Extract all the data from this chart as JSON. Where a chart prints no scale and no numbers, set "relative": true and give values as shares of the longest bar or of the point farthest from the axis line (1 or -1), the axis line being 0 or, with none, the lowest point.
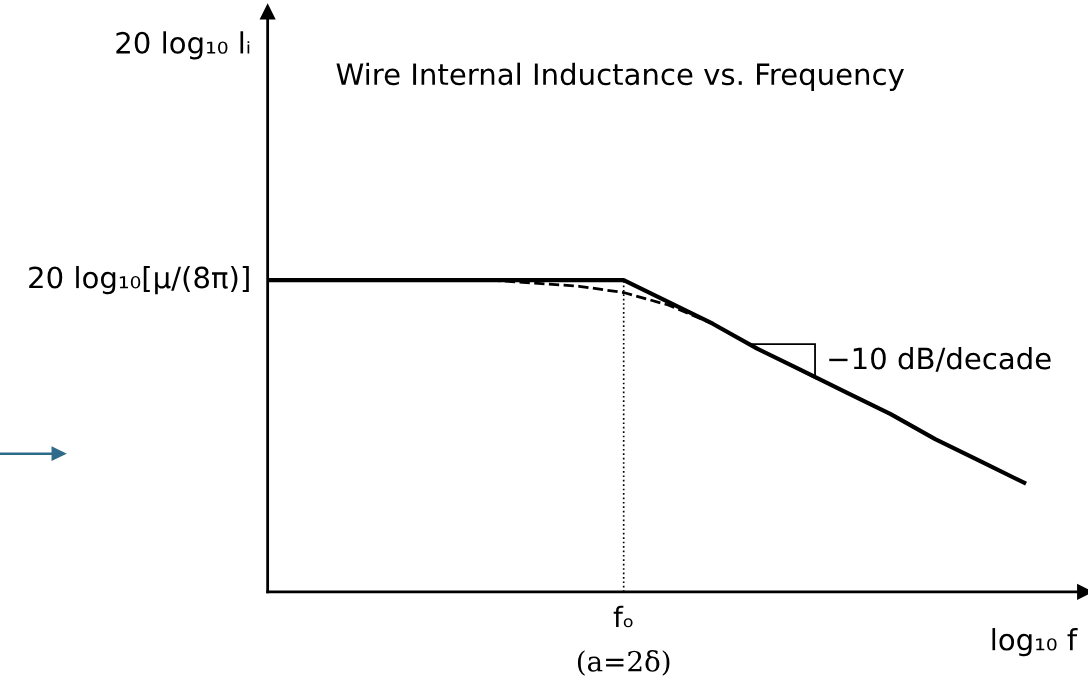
{
  "chart_data": {
    "type": "line",
    "relative": true,
    "title": "Wire Internal Inductance vs. Frequency",
    "xlabel": "log₁₀ f",
    "categories": [
      null,
      null,
      null,
      null,
      null,
      null,
      null,
      null,
      null,
      null,
      null,
      null,
      null,
      null,
      null,
      null,
      null,
      null
    ],
    "series": [
      {
        "color": "#000000",
        "line_style": "solid",
        "values": [
          1,
          1,
          1,
          1,
          1,
          1,
          1,
          1,
          1,
          0.93,
          0.86,
          0.78,
          0.71,
          0.64,
          0.57,
          0.49,
          0.42,
          0.35
        ]
      },
      {
        "color": "#000000",
        "line_style": "dashed",
        "values": [
          null,
          null,
          null,
          null,
          null,
          1,
          0.99,
          0.98,
          0.96,
          0.92,
          0.86,
          null,
          null,
          null,
          null,
          null,
          null,
          null
        ]
      }
    ],
    "annotations": [
      "20 log₁₀ lᵢ",
      "20 log₁₀[μ/(8π)]",
      "−10 dB/decade",
      "fₒ",
      "(a=2δ)"
    ],
    "legend": false,
    "marker": "none"
  }
}
